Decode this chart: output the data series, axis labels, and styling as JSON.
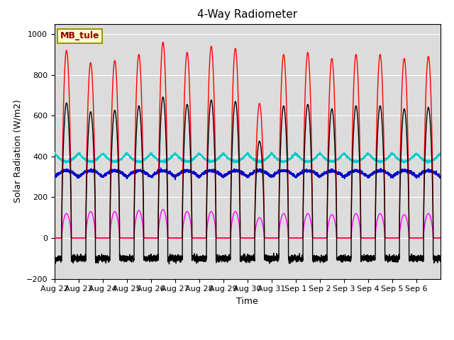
{
  "title": "4-Way Radiometer",
  "xlabel": "Time",
  "ylabel": "Solar Radiation (W/m2)",
  "ylim": [
    -200,
    1050
  ],
  "yticks": [
    -200,
    0,
    200,
    400,
    600,
    800,
    1000
  ],
  "station_label": "MB_tule",
  "bg_color": "#dcdcdc",
  "fig_bg": "#ffffff",
  "line_colors": {
    "SW_in": "#ff0000",
    "SW_out": "#ff00ff",
    "LW_in": "#0000cc",
    "LW_out": "#00cccc",
    "Rnet_4way": "#000000"
  },
  "x_tick_labels": [
    "Aug 22",
    "Aug 23",
    "Aug 24",
    "Aug 25",
    "Aug 26",
    "Aug 27",
    "Aug 28",
    "Aug 29",
    "Aug 30",
    "Aug 31",
    "Sep 1",
    "Sep 2",
    "Sep 3",
    "Sep 4",
    "Sep 5",
    "Sep 6"
  ],
  "n_days": 16,
  "pts_per_day": 288,
  "SW_in_peaks": [
    920,
    860,
    870,
    900,
    960,
    910,
    940,
    930,
    660,
    900,
    910,
    880,
    900,
    900,
    880,
    890
  ],
  "SW_out_peaks": [
    120,
    130,
    130,
    135,
    140,
    130,
    130,
    130,
    100,
    120,
    120,
    115,
    120,
    120,
    115,
    120
  ],
  "LW_in_base": 300,
  "LW_in_day_bump": 30,
  "LW_out_base": 415,
  "LW_out_day_dip": 40,
  "Rnet_peak_scale": 0.72,
  "Rnet_night": -100
}
